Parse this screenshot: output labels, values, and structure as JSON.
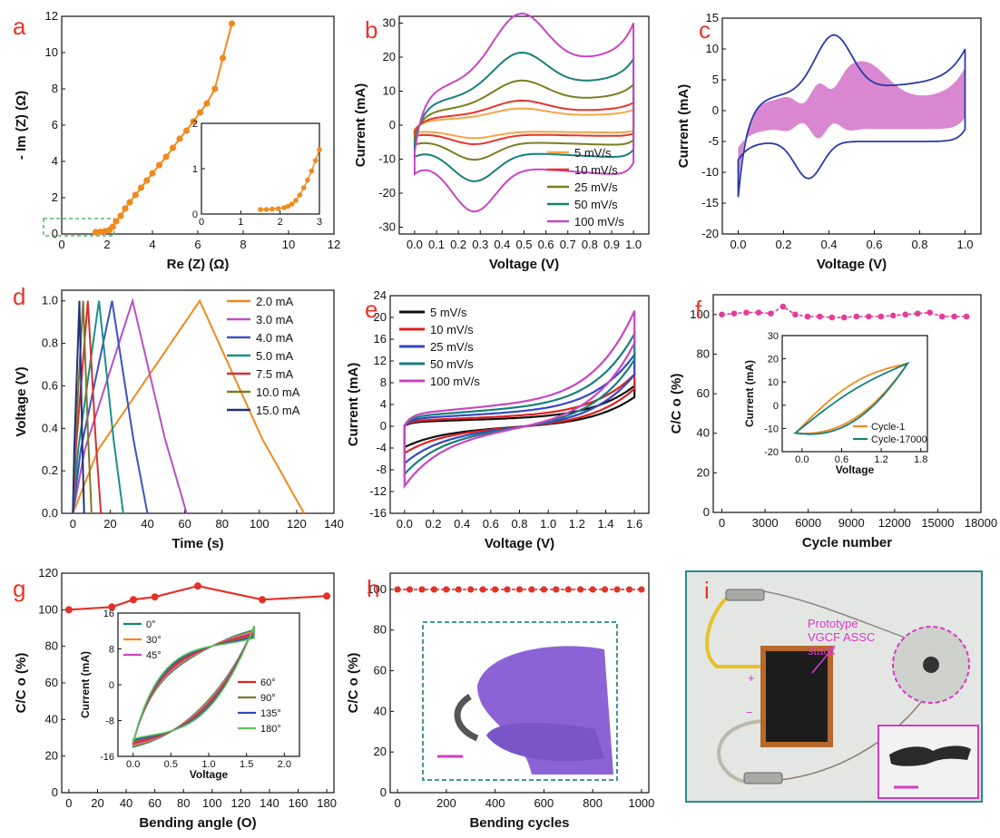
{
  "chart_data": [
    {
      "id": "a",
      "type": "scatter",
      "panel_label": "a",
      "xlabel": "Re (Z) (Ω)",
      "ylabel": "- Im (Z) (Ω)",
      "xlim": [
        0,
        12
      ],
      "ylim": [
        0,
        12
      ],
      "xticks": [
        0,
        2,
        4,
        6,
        8,
        10,
        12
      ],
      "yticks": [
        0,
        2,
        4,
        6,
        8,
        10,
        12
      ],
      "color": "#f08a1e",
      "series": [
        {
          "x": [
            1.5,
            1.7,
            1.9,
            2.1,
            2.25,
            2.4,
            2.6,
            2.8,
            3.0,
            3.25,
            3.5,
            3.75,
            4.0,
            4.3,
            4.6,
            4.9,
            5.2,
            5.5,
            5.8,
            6.1,
            6.4,
            6.75,
            7.1,
            7.5
          ],
          "y": [
            0.1,
            0.12,
            0.15,
            0.22,
            0.4,
            0.7,
            1.0,
            1.4,
            1.75,
            2.15,
            2.55,
            2.95,
            3.35,
            3.8,
            4.25,
            4.75,
            5.25,
            5.7,
            6.2,
            6.7,
            7.2,
            8.0,
            9.7,
            11.6
          ]
        }
      ],
      "inset": {
        "xlim": [
          0,
          3
        ],
        "ylim": [
          0,
          2
        ],
        "xticks": [
          0,
          1,
          2,
          3
        ],
        "yticks": [
          0,
          1,
          2
        ],
        "x": [
          1.5,
          1.65,
          1.8,
          1.95,
          2.1,
          2.2,
          2.3,
          2.4,
          2.5,
          2.6,
          2.7,
          2.8,
          2.9,
          3.0
        ],
        "y": [
          0.1,
          0.1,
          0.11,
          0.12,
          0.14,
          0.17,
          0.22,
          0.3,
          0.42,
          0.58,
          0.75,
          0.95,
          1.18,
          1.42
        ]
      }
    },
    {
      "id": "b",
      "type": "line",
      "panel_label": "b",
      "xlabel": "Voltage (V)",
      "ylabel": "Current (mA)",
      "xlim": [
        -0.07,
        1.07
      ],
      "ylim": [
        -32,
        32
      ],
      "xticks": [
        0.0,
        0.1,
        0.2,
        0.3,
        0.4,
        0.5,
        0.6,
        0.7,
        0.8,
        0.9,
        1.0
      ],
      "yticks": [
        -30,
        -20,
        -10,
        0,
        10,
        20,
        30
      ],
      "legend_position": "bottom-right",
      "series": [
        {
          "name": "5 mV/s",
          "color": "#f5a54a",
          "scale": 0.15
        },
        {
          "name": "10 mV/s",
          "color": "#e8352a",
          "scale": 0.22
        },
        {
          "name": "25 mV/s",
          "color": "#7b7d22",
          "scale": 0.4
        },
        {
          "name": "50 mV/s",
          "color": "#17807c",
          "scale": 0.65
        },
        {
          "name": "100 mV/s",
          "color": "#c846c0",
          "scale": 1.0
        }
      ]
    },
    {
      "id": "c",
      "type": "area",
      "panel_label": "c",
      "xlabel": "Voltage (V)",
      "ylabel": "Current (mA)",
      "xlim": [
        -0.07,
        1.07
      ],
      "ylim": [
        -20,
        15
      ],
      "xticks": [
        0.0,
        0.2,
        0.4,
        0.6,
        0.8,
        1.0
      ],
      "yticks": [
        -20,
        -15,
        -10,
        -5,
        0,
        5,
        10,
        15
      ],
      "outline_color": "#2a3aa8",
      "fill_color": "#d472c9"
    },
    {
      "id": "d",
      "type": "line",
      "panel_label": "d",
      "xlabel": "Time (s)",
      "ylabel": "Voltage (V)",
      "xlim": [
        -6,
        140
      ],
      "ylim": [
        0,
        1.05
      ],
      "xticks": [
        0,
        20,
        40,
        60,
        80,
        100,
        120,
        140
      ],
      "yticks": [
        0.0,
        0.2,
        0.4,
        0.6,
        0.8,
        1.0
      ],
      "legend_position": "top-right",
      "series": [
        {
          "name": "2.0 mA",
          "color": "#f08a1e",
          "charge": 68,
          "total": 124
        },
        {
          "name": "3.0 mA",
          "color": "#b84fc0",
          "charge": 32,
          "total": 61
        },
        {
          "name": "4.0 mA",
          "color": "#3b52c4",
          "charge": 21,
          "total": 40
        },
        {
          "name": "5.0 mA",
          "color": "#18908a",
          "charge": 14,
          "total": 27
        },
        {
          "name": "7.5 mA",
          "color": "#d63030",
          "charge": 8,
          "total": 15
        },
        {
          "name": "10.0 mA",
          "color": "#7d7a28",
          "charge": 5.5,
          "total": 10
        },
        {
          "name": "15.0 mA",
          "color": "#24307a",
          "charge": 3.5,
          "total": 6
        }
      ]
    },
    {
      "id": "e",
      "type": "line",
      "panel_label": "e",
      "xlabel": "Voltage (V)",
      "ylabel": "Current (mA)",
      "xlim": [
        -0.1,
        1.7
      ],
      "ylim": [
        -16,
        24
      ],
      "xticks": [
        0.0,
        0.2,
        0.4,
        0.6,
        0.8,
        1.0,
        1.2,
        1.4,
        1.6
      ],
      "yticks": [
        -16,
        -12,
        -8,
        -4,
        0,
        4,
        8,
        12,
        16,
        20,
        24
      ],
      "legend_position": "top-left",
      "series": [
        {
          "name": "5 mV/s",
          "color": "#111111",
          "scale": 0.35
        },
        {
          "name": "10 mV/s",
          "color": "#e02020",
          "scale": 0.45
        },
        {
          "name": "25 mV/s",
          "color": "#3448c4",
          "scale": 0.62
        },
        {
          "name": "50 mV/s",
          "color": "#17807c",
          "scale": 0.8
        },
        {
          "name": "100 mV/s",
          "color": "#c846c0",
          "scale": 1.0
        }
      ]
    },
    {
      "id": "f",
      "type": "line",
      "panel_label": "f",
      "xlabel": "Cycle number",
      "ylabel": "C/C o (%)",
      "xlim": [
        -600,
        18000
      ],
      "ylim": [
        0,
        110
      ],
      "xticks": [
        0,
        3000,
        6000,
        9000,
        12000,
        15000,
        18000
      ],
      "yticks": [
        0,
        20,
        40,
        60,
        80,
        100
      ],
      "color": "#e23d9b",
      "x": [
        0,
        850,
        1700,
        2550,
        3400,
        4250,
        5100,
        5950,
        6800,
        7650,
        8500,
        9350,
        10200,
        11050,
        11900,
        12750,
        13600,
        14450,
        15300,
        16150,
        17000
      ],
      "y": [
        100,
        100.5,
        101,
        101,
        100.5,
        104,
        100,
        99,
        99,
        98.5,
        98.5,
        99,
        99,
        99,
        99.5,
        100,
        100.5,
        101,
        99,
        99,
        99
      ],
      "inset": {
        "xlabel": "Voltage",
        "ylabel": "Current (mA)",
        "xlim": [
          -0.3,
          1.9
        ],
        "ylim": [
          -20,
          30
        ],
        "xticks": [
          0.0,
          0.6,
          1.2,
          1.8
        ],
        "yticks": [
          -20,
          -10,
          0,
          10,
          20,
          30
        ],
        "series": [
          {
            "name": "Cycle-1",
            "color": "#f08a1e"
          },
          {
            "name": "Cycle-17000",
            "color": "#17807c"
          }
        ]
      }
    },
    {
      "id": "g",
      "type": "line",
      "panel_label": "g",
      "xlabel": "Bending angle (O)",
      "ylabel": "C/C o (%)",
      "xlim": [
        -5,
        185
      ],
      "ylim": [
        0,
        120
      ],
      "xticks": [
        0,
        20,
        40,
        60,
        80,
        100,
        120,
        140,
        160,
        180
      ],
      "yticks": [
        0,
        20,
        40,
        60,
        80,
        100,
        120
      ],
      "color": "#e23228",
      "x": [
        0,
        30,
        45,
        60,
        90,
        135,
        180
      ],
      "y": [
        100,
        101.5,
        105.5,
        107,
        113,
        105.5,
        107.5
      ],
      "inset": {
        "xlabel": "Voltage",
        "ylabel": "Current (mA)",
        "xlim": [
          -0.2,
          2.2
        ],
        "ylim": [
          -16,
          16
        ],
        "xticks": [
          0.0,
          0.5,
          1.0,
          1.5,
          2.0
        ],
        "yticks": [
          -16,
          -8,
          0,
          8,
          16
        ],
        "series": [
          {
            "name": "0°",
            "color": "#17807c"
          },
          {
            "name": "30°",
            "color": "#f08a1e"
          },
          {
            "name": "45°",
            "color": "#c846c0"
          },
          {
            "name": "60°",
            "color": "#e02020"
          },
          {
            "name": "90°",
            "color": "#7d7a28"
          },
          {
            "name": "135°",
            "color": "#3448c4"
          },
          {
            "name": "180°",
            "color": "#5cc85c"
          }
        ]
      }
    },
    {
      "id": "h",
      "type": "line",
      "panel_label": "h",
      "xlabel": "Bending cycles",
      "ylabel": "C/C o (%)",
      "xlim": [
        -30,
        1030
      ],
      "ylim": [
        0,
        108
      ],
      "xticks": [
        0,
        200,
        400,
        600,
        800,
        1000
      ],
      "yticks": [
        0,
        20,
        40,
        60,
        80,
        100
      ],
      "color": "#e23228",
      "x": [
        0,
        50,
        100,
        150,
        200,
        250,
        300,
        350,
        400,
        450,
        500,
        550,
        600,
        650,
        700,
        750,
        800,
        850,
        900,
        950,
        1000
      ],
      "y": [
        100,
        100,
        100,
        100,
        100,
        100,
        100,
        100,
        100,
        100,
        100,
        100,
        100,
        100,
        100,
        100,
        100,
        100,
        100,
        100,
        100
      ]
    }
  ],
  "panel_i": {
    "panel_label": "i",
    "annotation": [
      "Prototype",
      "VGCF ASSC",
      "stack"
    ],
    "plus": "+",
    "minus": "−"
  }
}
